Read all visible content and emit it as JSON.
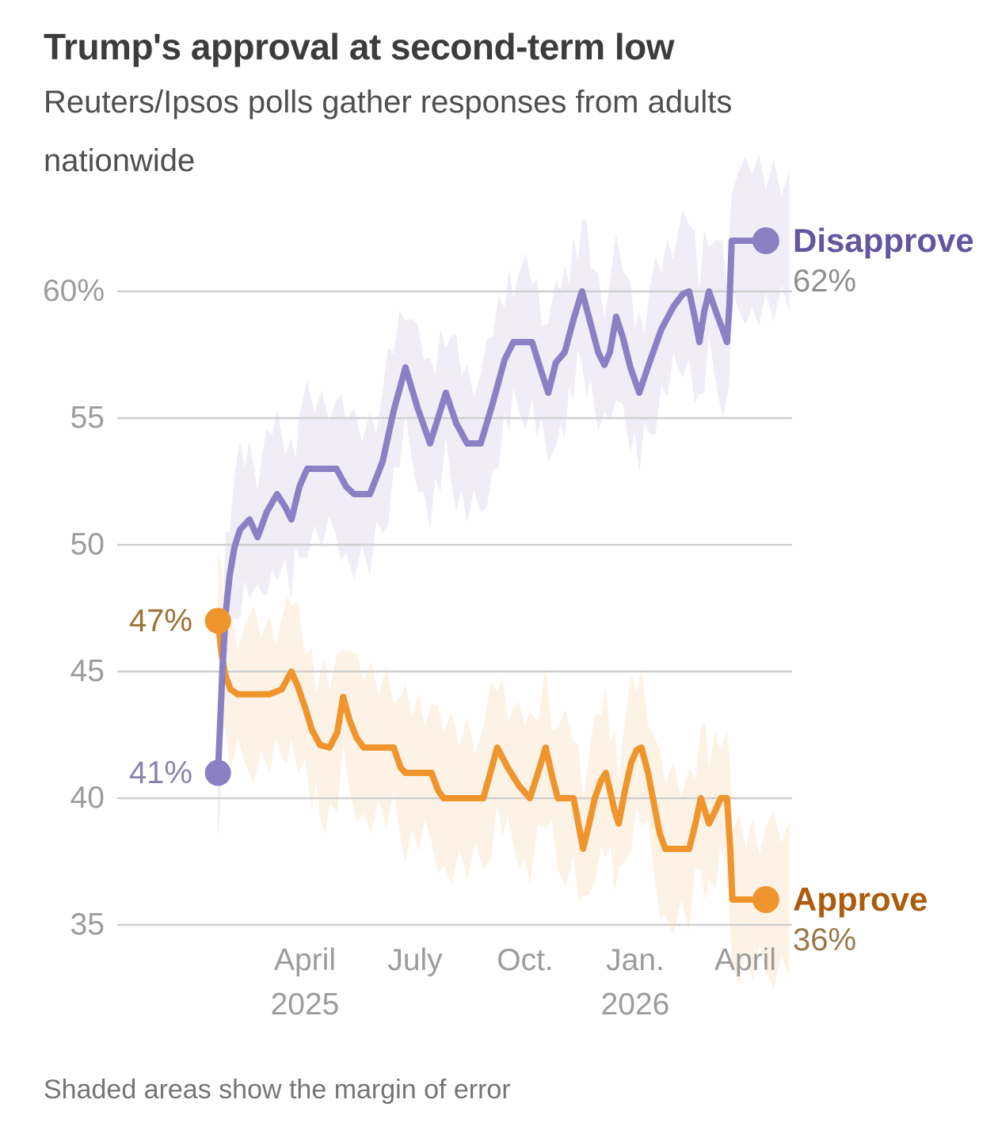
{
  "header": {
    "title": "Trump's approval at second-term low",
    "subtitle": "Reuters/Ipsos polls gather responses from adults nationwide"
  },
  "footer": {
    "note": "Shaded areas show the margin of error"
  },
  "colors": {
    "title": "#3c3c3c",
    "subtitle": "#4f4f4f",
    "tick_label": "#9c9c9c",
    "gridline": "#cfcfcf",
    "footnote": "#757575",
    "background": "#ffffff"
  },
  "chart_data": {
    "type": "line",
    "title": "Trump's approval at second-term low",
    "subtitle": "Reuters/Ipsos polls gather responses from adults nationwide",
    "unit": "percent",
    "grid": "horizontal-only",
    "note": "Shaded areas show the margin of error",
    "x_axis": {
      "kind": "time",
      "m_definition": "months since 2025-01-01 (0 = Jan 1 2025, 3 = Apr 1 2025, 15 = Apr 1 2026)",
      "data_start": "2025-01-20",
      "data_end": "2026-04-17",
      "ticks": [
        {
          "m": 3,
          "label": "April",
          "year": "2025"
        },
        {
          "m": 6,
          "label": "July"
        },
        {
          "m": 9,
          "label": "Oct."
        },
        {
          "m": 12,
          "label": "Jan.",
          "year": "2026"
        },
        {
          "m": 15,
          "label": "April"
        }
      ]
    },
    "y_axis": {
      "min": 34,
      "max": 65,
      "ticks": [
        {
          "v": 60,
          "label": "60%"
        },
        {
          "v": 55,
          "label": "55"
        },
        {
          "v": 50,
          "label": "50"
        },
        {
          "v": 45,
          "label": "45"
        },
        {
          "v": 40,
          "label": "40"
        },
        {
          "v": 35,
          "label": "35"
        }
      ]
    },
    "series": [
      {
        "name": "Disapprove",
        "color": "#8b80c3",
        "band_color": "#edeaf5",
        "name_color": "#64559e",
        "value_color": "#8e8e8e",
        "start": {
          "m": 0.63,
          "v": 41,
          "label": "41%",
          "label_color": "#8884ad"
        },
        "end": {
          "m": 15.56,
          "v": 62,
          "label": "62%"
        },
        "points": [
          [
            0.63,
            41
          ],
          [
            0.69,
            43
          ],
          [
            0.76,
            45.3
          ],
          [
            0.84,
            47.3
          ],
          [
            0.95,
            48.8
          ],
          [
            1.08,
            49.9
          ],
          [
            1.23,
            50.6
          ],
          [
            1.49,
            51
          ],
          [
            1.71,
            50.3
          ],
          [
            1.96,
            51.3
          ],
          [
            2.24,
            52
          ],
          [
            2.46,
            51.5
          ],
          [
            2.63,
            51
          ],
          [
            2.85,
            52.3
          ],
          [
            3.06,
            53
          ],
          [
            3.86,
            53
          ],
          [
            4.12,
            52.3
          ],
          [
            4.34,
            52
          ],
          [
            4.77,
            52
          ],
          [
            5.12,
            53.3
          ],
          [
            5.42,
            55.3
          ],
          [
            5.74,
            57
          ],
          [
            6.07,
            55.4
          ],
          [
            6.41,
            54
          ],
          [
            6.69,
            55.3
          ],
          [
            6.84,
            56
          ],
          [
            7.12,
            54.8
          ],
          [
            7.42,
            54
          ],
          [
            7.79,
            54
          ],
          [
            8.12,
            55.6
          ],
          [
            8.44,
            57.3
          ],
          [
            8.68,
            58
          ],
          [
            9.19,
            58
          ],
          [
            9.45,
            56.8
          ],
          [
            9.63,
            56
          ],
          [
            9.84,
            57.2
          ],
          [
            10.08,
            57.6
          ],
          [
            10.32,
            58.9
          ],
          [
            10.55,
            60
          ],
          [
            10.79,
            58.7
          ],
          [
            10.99,
            57.6
          ],
          [
            11.16,
            57.1
          ],
          [
            11.31,
            57.6
          ],
          [
            11.48,
            59
          ],
          [
            11.66,
            58.2
          ],
          [
            11.87,
            57
          ],
          [
            12.11,
            56
          ],
          [
            12.39,
            57.2
          ],
          [
            12.71,
            58.5
          ],
          [
            13.04,
            59.4
          ],
          [
            13.3,
            59.9
          ],
          [
            13.47,
            60
          ],
          [
            13.62,
            59
          ],
          [
            13.75,
            58
          ],
          [
            13.88,
            59.2
          ],
          [
            14.01,
            60
          ],
          [
            14.2,
            59.2
          ],
          [
            14.38,
            58.5
          ],
          [
            14.5,
            58
          ],
          [
            14.57,
            59.5
          ],
          [
            14.63,
            62
          ],
          [
            15.56,
            62
          ]
        ]
      },
      {
        "name": "Approve",
        "color": "#f0952d",
        "band_color": "#fcf1e2",
        "name_color": "#ab5c0d",
        "value_color": "#987a49",
        "start": {
          "m": 0.63,
          "v": 47,
          "label": "47%",
          "label_color": "#9e7135"
        },
        "end": {
          "m": 15.56,
          "v": 36,
          "label": "36%"
        },
        "points": [
          [
            0.63,
            47
          ],
          [
            0.71,
            45.9
          ],
          [
            0.82,
            44.9
          ],
          [
            0.97,
            44.3
          ],
          [
            1.17,
            44.1
          ],
          [
            2.03,
            44.1
          ],
          [
            2.37,
            44.3
          ],
          [
            2.63,
            45
          ],
          [
            2.81,
            44.4
          ],
          [
            3.0,
            43.6
          ],
          [
            3.19,
            42.7
          ],
          [
            3.41,
            42.1
          ],
          [
            3.67,
            42
          ],
          [
            3.88,
            42.6
          ],
          [
            4.04,
            44
          ],
          [
            4.21,
            43.1
          ],
          [
            4.4,
            42.4
          ],
          [
            4.6,
            42
          ],
          [
            5.42,
            42
          ],
          [
            5.61,
            41.2
          ],
          [
            5.74,
            41
          ],
          [
            6.45,
            41
          ],
          [
            6.63,
            40.3
          ],
          [
            6.78,
            40
          ],
          [
            7.86,
            40
          ],
          [
            8.07,
            41.1
          ],
          [
            8.24,
            42
          ],
          [
            8.53,
            41.2
          ],
          [
            8.83,
            40.5
          ],
          [
            9.13,
            40
          ],
          [
            9.35,
            41
          ],
          [
            9.56,
            42
          ],
          [
            9.73,
            40.9
          ],
          [
            9.89,
            40
          ],
          [
            10.32,
            40
          ],
          [
            10.45,
            39
          ],
          [
            10.58,
            38
          ],
          [
            10.73,
            38.9
          ],
          [
            10.9,
            40
          ],
          [
            11.07,
            40.7
          ],
          [
            11.2,
            41
          ],
          [
            11.33,
            40.2
          ],
          [
            11.44,
            39.5
          ],
          [
            11.55,
            39
          ],
          [
            11.72,
            40.3
          ],
          [
            11.89,
            41.4
          ],
          [
            12.04,
            41.9
          ],
          [
            12.17,
            42
          ],
          [
            12.35,
            41
          ],
          [
            12.52,
            39.7
          ],
          [
            12.67,
            38.6
          ],
          [
            12.82,
            38
          ],
          [
            13.47,
            38
          ],
          [
            13.64,
            39
          ],
          [
            13.79,
            40
          ],
          [
            13.9,
            39.5
          ],
          [
            14.01,
            39
          ],
          [
            14.18,
            39.5
          ],
          [
            14.33,
            40
          ],
          [
            14.5,
            40
          ],
          [
            14.59,
            38
          ],
          [
            14.65,
            36
          ],
          [
            15.56,
            36
          ]
        ]
      }
    ]
  }
}
